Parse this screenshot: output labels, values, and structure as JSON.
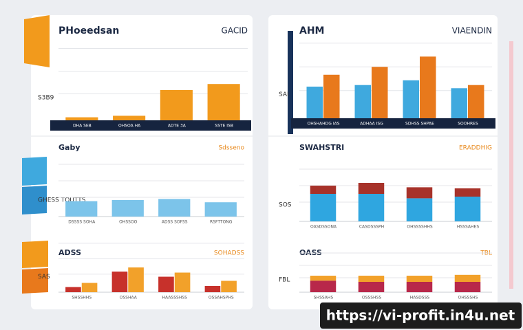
{
  "footer_url": "https://vi-profit.in4u.net",
  "panels": [
    {
      "title": "PHoeedsan",
      "subtitle": "GACID",
      "axis_label": "S3B9",
      "categories": [
        "DHA SEB",
        "OHSOA HA",
        "ADTE 3A",
        "SSTE ISB"
      ],
      "stacked": false,
      "series": [
        {
          "color": "#f29a1c",
          "values": [
            4,
            6,
            40,
            48
          ]
        }
      ]
    },
    {
      "title": "AHM",
      "subtitle": "VIAENDIN",
      "axis_label": "SAI",
      "categories": [
        "OHSHAHDG IAS",
        "ADHAA ISG",
        "SDHSS SHPAE",
        "SOOHRES"
      ],
      "stacked": false,
      "series": [
        {
          "color": "#3fa9de",
          "values": [
            40,
            42,
            48,
            38
          ]
        },
        {
          "color": "#e8791c",
          "values": [
            55,
            65,
            78,
            42
          ]
        }
      ]
    },
    {
      "title": "Gaby",
      "subtitle": "Sdsseno",
      "axis_label": "GHESS TOUTTS",
      "categories": [
        "DSSSS SOHA",
        "OHSSOO",
        "ADSS SOFSS",
        "RSFTTONG"
      ],
      "stacked": false,
      "series": [
        {
          "color": "#7cc4ea",
          "values": [
            28,
            30,
            32,
            26
          ]
        }
      ]
    },
    {
      "title": "SWAHSTRI",
      "subtitle": "ERADDHIG",
      "axis_label": "SOS",
      "categories": [
        "OASDSSONA",
        "CASDSSSPH",
        "OHSSSSHHS",
        "HSSSAHES"
      ],
      "stacked": true,
      "series": [
        {
          "color": "#2fa6e0",
          "values": [
            50,
            50,
            42,
            45
          ]
        },
        {
          "color": "#a7322a",
          "values": [
            15,
            20,
            20,
            15
          ]
        }
      ]
    },
    {
      "title": "ADSS",
      "subtitle": "SOHADSS",
      "axis_label": "SAS",
      "categories": [
        "SHSSHHS",
        "OSSHAA",
        "HAASSSHSS",
        "OSSAHSPHS"
      ],
      "stacked": false,
      "series": [
        {
          "color": "#c7312b",
          "values": [
            10,
            40,
            30,
            12
          ]
        },
        {
          "color": "#f2a12a",
          "values": [
            18,
            48,
            38,
            22
          ]
        }
      ]
    },
    {
      "title": "OASS",
      "subtitle": "TBL",
      "axis_label": "FBL",
      "categories": [
        "SHSSAHS",
        "OSSSHSS",
        "HASDSSS",
        "OHSSSHS"
      ],
      "stacked": true,
      "series": [
        {
          "color": "#b8284a",
          "values": [
            28,
            25,
            25,
            25
          ]
        },
        {
          "color": "#f2a12a",
          "values": [
            12,
            15,
            15,
            17
          ]
        }
      ]
    }
  ]
}
